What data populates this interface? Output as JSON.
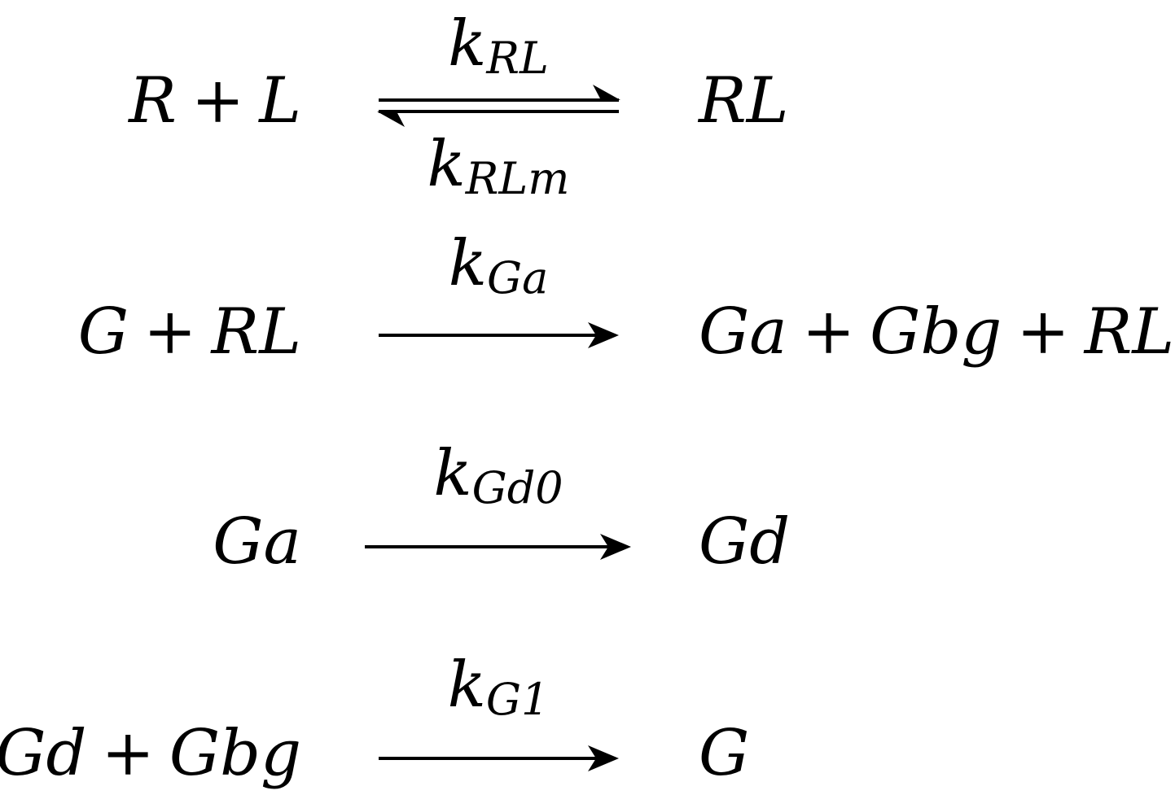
{
  "reactions": [
    {
      "left": [
        {
          "text": "R"
        },
        {
          "op": "+"
        },
        {
          "text": "L"
        }
      ],
      "right": [
        {
          "text": "RL"
        }
      ],
      "arrow": "equilibrium",
      "rate_top": {
        "k": "k",
        "sub": "RL"
      },
      "rate_bottom": {
        "k": "k",
        "sub": "RLm"
      }
    },
    {
      "left": [
        {
          "text": "G"
        },
        {
          "op": "+"
        },
        {
          "text": "RL"
        }
      ],
      "right": [
        {
          "text": "Ga"
        },
        {
          "op": "+"
        },
        {
          "text": "Gbg"
        },
        {
          "op": "+"
        },
        {
          "text": "RL"
        }
      ],
      "arrow": "forward",
      "rate_top": {
        "k": "k",
        "sub": "Ga"
      }
    },
    {
      "left": [
        {
          "text": "Ga"
        }
      ],
      "right": [
        {
          "text": "Gd"
        }
      ],
      "arrow": "forward",
      "rate_top": {
        "k": "k",
        "sub": "Gd0"
      }
    },
    {
      "left": [
        {
          "text": "Gd"
        },
        {
          "op": "+"
        },
        {
          "text": "Gbg"
        }
      ],
      "right": [
        {
          "text": "G"
        }
      ],
      "arrow": "forward",
      "rate_top": {
        "k": "k",
        "sub": "G1"
      }
    }
  ],
  "colors": {
    "ink": "#000000",
    "background": "#ffffff"
  }
}
